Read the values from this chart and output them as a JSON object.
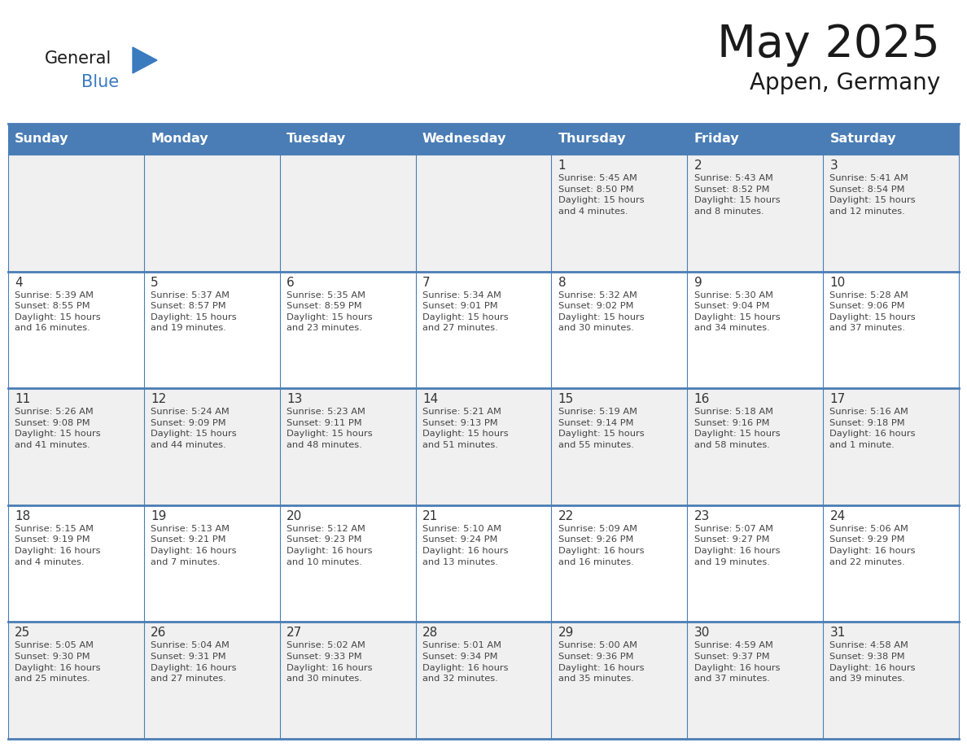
{
  "title": "May 2025",
  "subtitle": "Appen, Germany",
  "days_of_week": [
    "Sunday",
    "Monday",
    "Tuesday",
    "Wednesday",
    "Thursday",
    "Friday",
    "Saturday"
  ],
  "header_bg_color": "#4a7db5",
  "header_text_color": "#ffffff",
  "cell_bg_white": "#ffffff",
  "cell_bg_gray": "#f0f0f0",
  "day_number_color": "#333333",
  "text_color": "#444444",
  "line_color": "#4a7db5",
  "title_color": "#1a1a1a",
  "subtitle_color": "#1a1a1a",
  "logo_general_color": "#1a1a1a",
  "logo_blue_color": "#3a7abf",
  "triangle_color": "#3a7abf",
  "weeks": [
    [
      {
        "day": null,
        "text": ""
      },
      {
        "day": null,
        "text": ""
      },
      {
        "day": null,
        "text": ""
      },
      {
        "day": null,
        "text": ""
      },
      {
        "day": 1,
        "text": "Sunrise: 5:45 AM\nSunset: 8:50 PM\nDaylight: 15 hours\nand 4 minutes."
      },
      {
        "day": 2,
        "text": "Sunrise: 5:43 AM\nSunset: 8:52 PM\nDaylight: 15 hours\nand 8 minutes."
      },
      {
        "day": 3,
        "text": "Sunrise: 5:41 AM\nSunset: 8:54 PM\nDaylight: 15 hours\nand 12 minutes."
      }
    ],
    [
      {
        "day": 4,
        "text": "Sunrise: 5:39 AM\nSunset: 8:55 PM\nDaylight: 15 hours\nand 16 minutes."
      },
      {
        "day": 5,
        "text": "Sunrise: 5:37 AM\nSunset: 8:57 PM\nDaylight: 15 hours\nand 19 minutes."
      },
      {
        "day": 6,
        "text": "Sunrise: 5:35 AM\nSunset: 8:59 PM\nDaylight: 15 hours\nand 23 minutes."
      },
      {
        "day": 7,
        "text": "Sunrise: 5:34 AM\nSunset: 9:01 PM\nDaylight: 15 hours\nand 27 minutes."
      },
      {
        "day": 8,
        "text": "Sunrise: 5:32 AM\nSunset: 9:02 PM\nDaylight: 15 hours\nand 30 minutes."
      },
      {
        "day": 9,
        "text": "Sunrise: 5:30 AM\nSunset: 9:04 PM\nDaylight: 15 hours\nand 34 minutes."
      },
      {
        "day": 10,
        "text": "Sunrise: 5:28 AM\nSunset: 9:06 PM\nDaylight: 15 hours\nand 37 minutes."
      }
    ],
    [
      {
        "day": 11,
        "text": "Sunrise: 5:26 AM\nSunset: 9:08 PM\nDaylight: 15 hours\nand 41 minutes."
      },
      {
        "day": 12,
        "text": "Sunrise: 5:24 AM\nSunset: 9:09 PM\nDaylight: 15 hours\nand 44 minutes."
      },
      {
        "day": 13,
        "text": "Sunrise: 5:23 AM\nSunset: 9:11 PM\nDaylight: 15 hours\nand 48 minutes."
      },
      {
        "day": 14,
        "text": "Sunrise: 5:21 AM\nSunset: 9:13 PM\nDaylight: 15 hours\nand 51 minutes."
      },
      {
        "day": 15,
        "text": "Sunrise: 5:19 AM\nSunset: 9:14 PM\nDaylight: 15 hours\nand 55 minutes."
      },
      {
        "day": 16,
        "text": "Sunrise: 5:18 AM\nSunset: 9:16 PM\nDaylight: 15 hours\nand 58 minutes."
      },
      {
        "day": 17,
        "text": "Sunrise: 5:16 AM\nSunset: 9:18 PM\nDaylight: 16 hours\nand 1 minute."
      }
    ],
    [
      {
        "day": 18,
        "text": "Sunrise: 5:15 AM\nSunset: 9:19 PM\nDaylight: 16 hours\nand 4 minutes."
      },
      {
        "day": 19,
        "text": "Sunrise: 5:13 AM\nSunset: 9:21 PM\nDaylight: 16 hours\nand 7 minutes."
      },
      {
        "day": 20,
        "text": "Sunrise: 5:12 AM\nSunset: 9:23 PM\nDaylight: 16 hours\nand 10 minutes."
      },
      {
        "day": 21,
        "text": "Sunrise: 5:10 AM\nSunset: 9:24 PM\nDaylight: 16 hours\nand 13 minutes."
      },
      {
        "day": 22,
        "text": "Sunrise: 5:09 AM\nSunset: 9:26 PM\nDaylight: 16 hours\nand 16 minutes."
      },
      {
        "day": 23,
        "text": "Sunrise: 5:07 AM\nSunset: 9:27 PM\nDaylight: 16 hours\nand 19 minutes."
      },
      {
        "day": 24,
        "text": "Sunrise: 5:06 AM\nSunset: 9:29 PM\nDaylight: 16 hours\nand 22 minutes."
      }
    ],
    [
      {
        "day": 25,
        "text": "Sunrise: 5:05 AM\nSunset: 9:30 PM\nDaylight: 16 hours\nand 25 minutes."
      },
      {
        "day": 26,
        "text": "Sunrise: 5:04 AM\nSunset: 9:31 PM\nDaylight: 16 hours\nand 27 minutes."
      },
      {
        "day": 27,
        "text": "Sunrise: 5:02 AM\nSunset: 9:33 PM\nDaylight: 16 hours\nand 30 minutes."
      },
      {
        "day": 28,
        "text": "Sunrise: 5:01 AM\nSunset: 9:34 PM\nDaylight: 16 hours\nand 32 minutes."
      },
      {
        "day": 29,
        "text": "Sunrise: 5:00 AM\nSunset: 9:36 PM\nDaylight: 16 hours\nand 35 minutes."
      },
      {
        "day": 30,
        "text": "Sunrise: 4:59 AM\nSunset: 9:37 PM\nDaylight: 16 hours\nand 37 minutes."
      },
      {
        "day": 31,
        "text": "Sunrise: 4:58 AM\nSunset: 9:38 PM\nDaylight: 16 hours\nand 39 minutes."
      }
    ]
  ]
}
